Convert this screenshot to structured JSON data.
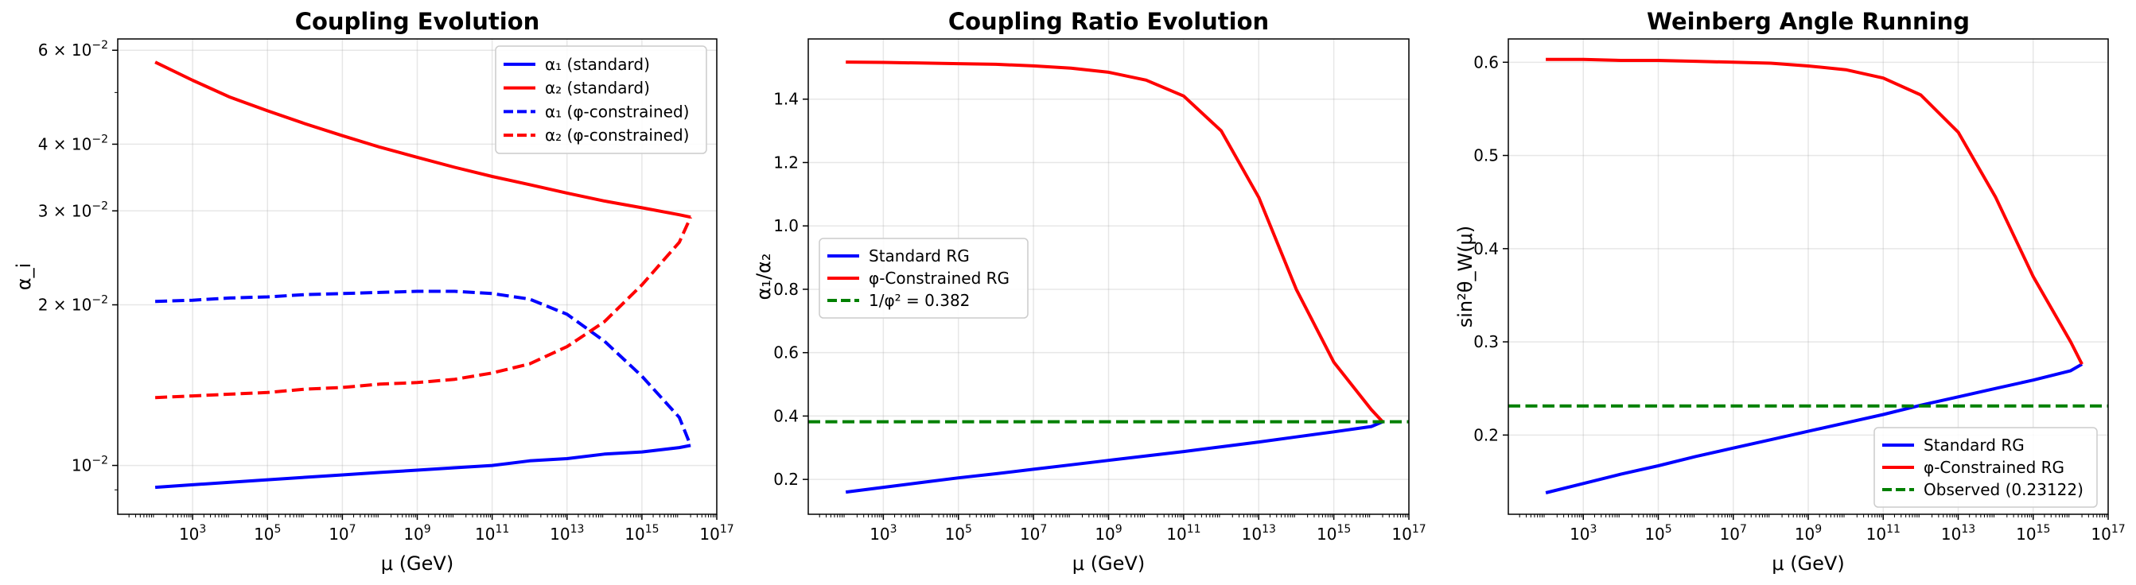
{
  "chart_data": [
    {
      "type": "line",
      "title": "Coupling Evolution",
      "xlabel": "μ (GeV)",
      "ylabel": "α_i",
      "xscale": "log",
      "yscale": "log",
      "xlim": [
        10,
        1e+17
      ],
      "ylim": [
        0.0081,
        0.063
      ],
      "xticks": [
        {
          "value": 1000,
          "base": "10",
          "exp": "3"
        },
        {
          "value": 100000,
          "base": "10",
          "exp": "5"
        },
        {
          "value": 10000000,
          "base": "10",
          "exp": "7"
        },
        {
          "value": 1000000000,
          "base": "10",
          "exp": "9"
        },
        {
          "value": 100000000000,
          "base": "10",
          "exp": "11"
        },
        {
          "value": 10000000000000,
          "base": "10",
          "exp": "13"
        },
        {
          "value": 1000000000000000,
          "base": "10",
          "exp": "15"
        },
        {
          "value": 100000000000000000,
          "base": "10",
          "exp": "17"
        }
      ],
      "yticks": [
        {
          "value": 0.01,
          "base": "10",
          "exp": "−2"
        },
        {
          "value": 0.02,
          "base": "2 × 10",
          "exp": "−2"
        },
        {
          "value": 0.03,
          "base": "3 × 10",
          "exp": "−2"
        },
        {
          "value": 0.04,
          "base": "4 × 10",
          "exp": "−2"
        },
        {
          "value": 0.06,
          "base": "6 × 10",
          "exp": "−2"
        }
      ],
      "grid": true,
      "legend_position": "top-right",
      "series": [
        {
          "name": "α₁ (standard)",
          "color": "#0000ff",
          "dash": "solid",
          "x": [
            100,
            1000,
            10000,
            100000,
            1000000,
            10000000,
            100000000,
            1000000000,
            10000000000,
            100000000000,
            1000000000000,
            10000000000000,
            100000000000000,
            1000000000000000,
            1e+16,
            2e+16
          ],
          "y": [
            0.0091,
            0.0092,
            0.0093,
            0.0094,
            0.0095,
            0.0096,
            0.0097,
            0.0098,
            0.0099,
            0.01,
            0.0102,
            0.0103,
            0.0105,
            0.0106,
            0.0108,
            0.0109
          ]
        },
        {
          "name": "α₂ (standard)",
          "color": "#ff0000",
          "dash": "solid",
          "x": [
            100,
            1000,
            10000,
            100000,
            1000000,
            10000000,
            100000000,
            1000000000,
            10000000000,
            100000000000,
            1000000000000,
            10000000000000,
            100000000000000,
            1000000000000000,
            1e+16,
            2e+16
          ],
          "y": [
            0.057,
            0.0527,
            0.049,
            0.0462,
            0.0437,
            0.0415,
            0.0395,
            0.0378,
            0.0362,
            0.0348,
            0.0336,
            0.0324,
            0.0313,
            0.0304,
            0.0295,
            0.0292
          ]
        },
        {
          "name": "α₁ (φ-constrained)",
          "color": "#0000ff",
          "dash": "dashed",
          "x": [
            100,
            1000,
            10000,
            100000,
            1000000,
            10000000,
            100000000,
            1000000000,
            10000000000,
            100000000000,
            1000000000000,
            10000000000000,
            100000000000000,
            1000000000000000,
            1e+16,
            2e+16
          ],
          "y": [
            0.0203,
            0.0204,
            0.0206,
            0.0207,
            0.0209,
            0.021,
            0.0211,
            0.0212,
            0.0212,
            0.021,
            0.0205,
            0.0192,
            0.0171,
            0.0147,
            0.0123,
            0.0109
          ]
        },
        {
          "name": "α₂ (φ-constrained)",
          "color": "#ff0000",
          "dash": "dashed",
          "x": [
            100,
            1000,
            10000,
            100000,
            1000000,
            10000000,
            100000000,
            1000000000,
            10000000000,
            100000000000,
            1000000000000,
            10000000000000,
            100000000000000,
            1000000000000000,
            1e+16,
            2e+16
          ],
          "y": [
            0.0134,
            0.0135,
            0.0136,
            0.0137,
            0.0139,
            0.014,
            0.0142,
            0.0143,
            0.0145,
            0.0149,
            0.0155,
            0.0167,
            0.0186,
            0.0218,
            0.0262,
            0.0292
          ]
        }
      ]
    },
    {
      "type": "line",
      "title": "Coupling Ratio Evolution",
      "xlabel": "μ (GeV)",
      "ylabel": "α₁/α₂",
      "xscale": "log",
      "yscale": "linear",
      "xlim": [
        10,
        1e+17
      ],
      "ylim": [
        0.09,
        1.59
      ],
      "xticks": [
        {
          "value": 1000,
          "base": "10",
          "exp": "3"
        },
        {
          "value": 100000,
          "base": "10",
          "exp": "5"
        },
        {
          "value": 10000000,
          "base": "10",
          "exp": "7"
        },
        {
          "value": 1000000000,
          "base": "10",
          "exp": "9"
        },
        {
          "value": 100000000000,
          "base": "10",
          "exp": "11"
        },
        {
          "value": 10000000000000,
          "base": "10",
          "exp": "13"
        },
        {
          "value": 1000000000000000,
          "base": "10",
          "exp": "15"
        },
        {
          "value": 100000000000000000,
          "base": "10",
          "exp": "17"
        }
      ],
      "yticks": [
        {
          "value": 0.2,
          "label": "0.2"
        },
        {
          "value": 0.4,
          "label": "0.4"
        },
        {
          "value": 0.6,
          "label": "0.6"
        },
        {
          "value": 0.8,
          "label": "0.8"
        },
        {
          "value": 1.0,
          "label": "1.0"
        },
        {
          "value": 1.2,
          "label": "1.2"
        },
        {
          "value": 1.4,
          "label": "1.4"
        }
      ],
      "grid": true,
      "legend_position": "center-left",
      "series": [
        {
          "name": "Standard RG",
          "color": "#0000ff",
          "dash": "solid",
          "x": [
            100,
            1000,
            10000,
            100000,
            1000000,
            10000000,
            100000000,
            1000000000,
            10000000000,
            100000000000,
            1000000000000,
            10000000000000,
            100000000000000,
            1000000000000000,
            1e+16,
            2e+16
          ],
          "y": [
            0.16,
            0.175,
            0.19,
            0.205,
            0.218,
            0.232,
            0.246,
            0.26,
            0.274,
            0.288,
            0.303,
            0.318,
            0.334,
            0.35,
            0.367,
            0.382
          ]
        },
        {
          "name": "φ-Constrained RG",
          "color": "#ff0000",
          "dash": "solid",
          "x": [
            100,
            1000,
            10000,
            100000,
            1000000,
            10000000,
            100000000,
            1000000000,
            10000000000,
            100000000000,
            1000000000000,
            10000000000000,
            100000000000000,
            1000000000000000,
            1e+16,
            2e+16
          ],
          "y": [
            1.517,
            1.516,
            1.514,
            1.512,
            1.51,
            1.505,
            1.498,
            1.485,
            1.46,
            1.41,
            1.3,
            1.09,
            0.8,
            0.57,
            0.42,
            0.382
          ]
        },
        {
          "name": "1/φ² = 0.382",
          "color": "#008000",
          "dash": "dashed",
          "x": [
            10,
            1e+17
          ],
          "y": [
            0.382,
            0.382
          ]
        }
      ]
    },
    {
      "type": "line",
      "title": "Weinberg Angle Running",
      "xlabel": "μ (GeV)",
      "ylabel": "sin²θ_W(μ)",
      "xscale": "log",
      "yscale": "linear",
      "xlim": [
        10,
        1e+17
      ],
      "ylim": [
        0.115,
        0.625
      ],
      "xticks": [
        {
          "value": 1000,
          "base": "10",
          "exp": "3"
        },
        {
          "value": 100000,
          "base": "10",
          "exp": "5"
        },
        {
          "value": 10000000,
          "base": "10",
          "exp": "7"
        },
        {
          "value": 1000000000,
          "base": "10",
          "exp": "9"
        },
        {
          "value": 100000000000,
          "base": "10",
          "exp": "11"
        },
        {
          "value": 10000000000000,
          "base": "10",
          "exp": "13"
        },
        {
          "value": 1000000000000000,
          "base": "10",
          "exp": "15"
        },
        {
          "value": 100000000000000000,
          "base": "10",
          "exp": "17"
        }
      ],
      "yticks": [
        {
          "value": 0.2,
          "label": "0.2"
        },
        {
          "value": 0.3,
          "label": "0.3"
        },
        {
          "value": 0.4,
          "label": "0.4"
        },
        {
          "value": 0.5,
          "label": "0.5"
        },
        {
          "value": 0.6,
          "label": "0.6"
        }
      ],
      "grid": true,
      "legend_position": "bottom-right",
      "series": [
        {
          "name": "Standard RG",
          "color": "#0000ff",
          "dash": "solid",
          "x": [
            100,
            1000,
            10000,
            100000,
            1000000,
            10000000,
            100000000,
            1000000000,
            10000000000,
            100000000000,
            1000000000000,
            10000000000000,
            100000000000000,
            1000000000000000,
            1e+16,
            2e+16
          ],
          "y": [
            0.138,
            0.148,
            0.158,
            0.167,
            0.177,
            0.186,
            0.195,
            0.204,
            0.213,
            0.222,
            0.232,
            0.241,
            0.25,
            0.259,
            0.269,
            0.276
          ]
        },
        {
          "name": "φ-Constrained RG",
          "color": "#ff0000",
          "dash": "solid",
          "x": [
            100,
            1000,
            10000,
            100000,
            1000000,
            10000000,
            100000000,
            1000000000,
            10000000000,
            100000000000,
            1000000000000,
            10000000000000,
            100000000000000,
            1000000000000000,
            1e+16,
            2e+16
          ],
          "y": [
            0.603,
            0.603,
            0.602,
            0.602,
            0.601,
            0.6,
            0.599,
            0.596,
            0.592,
            0.583,
            0.565,
            0.525,
            0.455,
            0.37,
            0.3,
            0.276
          ]
        },
        {
          "name": "Observed (0.23122)",
          "color": "#008000",
          "dash": "dashed",
          "x": [
            10,
            1e+17
          ],
          "y": [
            0.23122,
            0.23122
          ]
        }
      ]
    }
  ]
}
